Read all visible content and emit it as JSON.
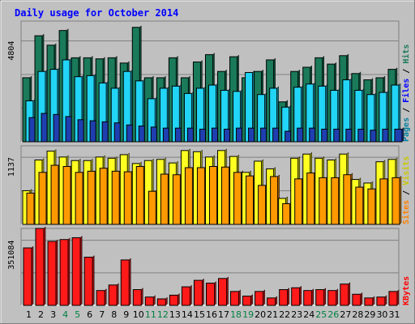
{
  "chart_data": [
    {
      "type": "bar",
      "title": "Daily usage for October 2014",
      "ylabel_parts": [
        "Pages",
        "Files",
        "Hits"
      ],
      "ytick_label": "4804",
      "ylim": [
        0,
        5750
      ],
      "categories": [
        "1",
        "2",
        "3",
        "4",
        "5",
        "6",
        "7",
        "8",
        "9",
        "10",
        "11",
        "12",
        "13",
        "14",
        "15",
        "16",
        "17",
        "18",
        "19",
        "20",
        "21",
        "22",
        "23",
        "24",
        "25",
        "26",
        "27",
        "28",
        "29",
        "30",
        "31"
      ],
      "weekend_days": [
        "4",
        "5",
        "11",
        "12",
        "18",
        "19",
        "25",
        "26"
      ],
      "series": [
        {
          "name": "Hits",
          "color": "#1a7a5a",
          "values": [
            3050,
            5050,
            4600,
            5300,
            4000,
            4000,
            3950,
            4000,
            3750,
            5450,
            3050,
            3050,
            4000,
            3050,
            3800,
            4150,
            3350,
            4050,
            3050,
            3350,
            3900,
            1900,
            3350,
            3550,
            4000,
            3700,
            4100,
            3250,
            2950,
            3050,
            3450
          ]
        },
        {
          "name": "Files",
          "color": "#22d4f5",
          "values": [
            1950,
            3350,
            3450,
            3900,
            3100,
            3150,
            2800,
            2550,
            3350,
            2900,
            2050,
            2550,
            2650,
            2300,
            2550,
            2700,
            2450,
            2400,
            3300,
            2250,
            2550,
            1650,
            2600,
            2750,
            2650,
            2450,
            2950,
            2450,
            2250,
            2350,
            2700
          ]
        },
        {
          "name": "Pages",
          "color": "#1f3fb0",
          "values": [
            1150,
            1350,
            1300,
            1200,
            1050,
            1000,
            950,
            900,
            800,
            750,
            700,
            650,
            650,
            650,
            600,
            650,
            600,
            650,
            650,
            650,
            650,
            500,
            650,
            650,
            600,
            600,
            600,
            600,
            550,
            600,
            600
          ]
        }
      ]
    },
    {
      "type": "bar",
      "ylabel_parts": [
        "Sites",
        "Visits"
      ],
      "ytick_label": "1137",
      "ylim": [
        0,
        1330
      ],
      "categories": [
        "1",
        "2",
        "3",
        "4",
        "5",
        "6",
        "7",
        "8",
        "9",
        "10",
        "11",
        "12",
        "13",
        "14",
        "15",
        "16",
        "17",
        "18",
        "19",
        "20",
        "21",
        "22",
        "23",
        "24",
        "25",
        "26",
        "27",
        "28",
        "29",
        "30",
        "31"
      ],
      "series": [
        {
          "name": "Visits",
          "color": "#ffff22",
          "values": [
            570,
            1090,
            1240,
            1140,
            1080,
            1080,
            1140,
            1120,
            1180,
            1030,
            1080,
            1100,
            1040,
            1250,
            1230,
            1140,
            1250,
            1150,
            880,
            1070,
            940,
            440,
            1120,
            1190,
            1120,
            1090,
            1190,
            760,
            700,
            1060,
            1100
          ]
        },
        {
          "name": "Sites",
          "color": "#ff9900",
          "values": [
            530,
            880,
            1000,
            980,
            880,
            900,
            950,
            900,
            890,
            980,
            560,
            850,
            840,
            960,
            960,
            980,
            970,
            880,
            820,
            660,
            810,
            350,
            770,
            870,
            790,
            790,
            840,
            630,
            600,
            770,
            790
          ]
        }
      ]
    },
    {
      "type": "bar",
      "ylabel_parts": [
        "KBytes"
      ],
      "ytick_label": "351084",
      "ylim": [
        0,
        415000
      ],
      "categories": [
        "1",
        "2",
        "3",
        "4",
        "5",
        "6",
        "7",
        "8",
        "9",
        "10",
        "11",
        "12",
        "13",
        "14",
        "15",
        "16",
        "17",
        "18",
        "19",
        "20",
        "21",
        "22",
        "23",
        "24",
        "25",
        "26",
        "27",
        "28",
        "29",
        "30",
        "31"
      ],
      "series": [
        {
          "name": "KBytes",
          "color": "#ff1a1a",
          "values": [
            310000,
            415000,
            345000,
            355000,
            365000,
            260000,
            80000,
            110000,
            245000,
            85000,
            45000,
            35000,
            55000,
            100000,
            135000,
            120000,
            145000,
            75000,
            50000,
            75000,
            40000,
            85000,
            95000,
            80000,
            85000,
            80000,
            115000,
            60000,
            40000,
            45000,
            75000
          ]
        }
      ]
    }
  ],
  "colors": {
    "background": "#c0c0c0",
    "title": "#0000ff",
    "plot_bg": "#c0c0c0",
    "weekday_label": "#000000",
    "weekend_label": "#008040",
    "pages": "#0080a0",
    "files": "#0000ff",
    "hits": "#1a7a5a",
    "sites": "#ff8000",
    "visits": "#c8c800",
    "kbytes": "#ff0000"
  }
}
